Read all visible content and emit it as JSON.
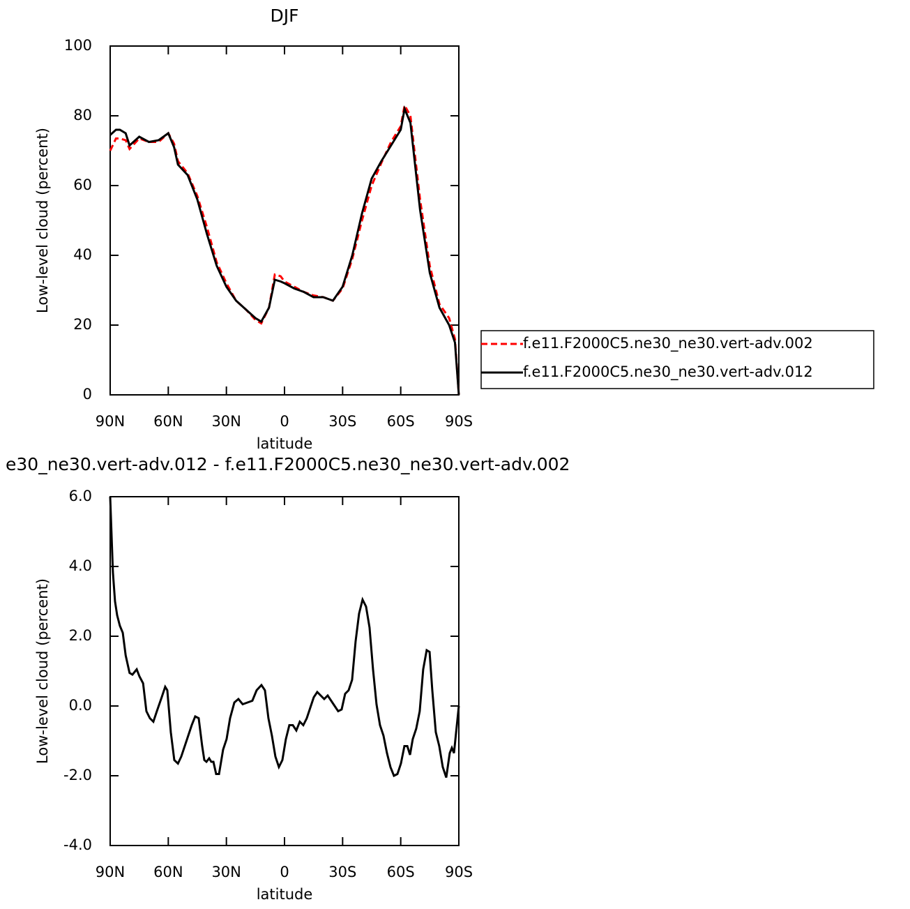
{
  "chart_data": [
    {
      "type": "line",
      "title": "DJF",
      "xlabel": "latitude",
      "ylabel": "Low-level cloud (percent)",
      "x": [
        90,
        87,
        85,
        82,
        80,
        75,
        70,
        65,
        60,
        57,
        55,
        50,
        45,
        40,
        35,
        30,
        25,
        20,
        15,
        12,
        8,
        5,
        2,
        0,
        -5,
        -10,
        -15,
        -20,
        -25,
        -30,
        -35,
        -40,
        -45,
        -50,
        -55,
        -60,
        -62,
        -65,
        -70,
        -75,
        -80,
        -85,
        -88,
        -90
      ],
      "series": [
        {
          "name": "f.e11.F2000C5.ne30_ne30.vert-adv.002",
          "color": "#ff0000",
          "style": "dashed",
          "values": [
            70,
            73.5,
            73.5,
            73,
            70.5,
            73.5,
            72.5,
            72.5,
            75,
            72,
            67,
            63.5,
            57,
            48,
            38,
            32,
            27,
            24.5,
            21.5,
            20.5,
            25,
            34.5,
            34,
            32.5,
            31,
            29.5,
            28.5,
            28,
            27,
            30.5,
            39,
            50,
            60,
            66.5,
            72.5,
            77,
            83,
            80,
            56,
            37,
            26,
            22,
            16,
            0
          ]
        },
        {
          "name": "f.e11.F2000C5.ne30_ne30.vert-adv.012",
          "color": "#000000",
          "style": "solid",
          "values": [
            74.5,
            76,
            76,
            75,
            71.5,
            74,
            72.5,
            73,
            75,
            71,
            66,
            63,
            56,
            46,
            37,
            31,
            27,
            24.5,
            22,
            21,
            25,
            33,
            32.5,
            32,
            30.5,
            29.5,
            28,
            28,
            27,
            31,
            40,
            52,
            62,
            67,
            71.5,
            76,
            82,
            78,
            53,
            35,
            25,
            20,
            15,
            0
          ]
        }
      ],
      "xlim": [
        90,
        -90
      ],
      "xticks": [
        {
          "value": 90,
          "label": "90N"
        },
        {
          "value": 60,
          "label": "60N"
        },
        {
          "value": 30,
          "label": "30N"
        },
        0,
        {
          "value": -30,
          "label": "30S"
        },
        {
          "value": -60,
          "label": "60S"
        },
        {
          "value": -90,
          "label": "90S"
        }
      ],
      "ylim": [
        0,
        100
      ],
      "yticks": [
        0,
        20,
        40,
        60,
        80,
        100
      ],
      "legend": "right"
    },
    {
      "type": "line",
      "title": "e30_ne30.vert-adv.012 - f.e11.F2000C5.ne30_ne30.vert-adv.002",
      "xlabel": "latitude",
      "ylabel": "Low-level cloud (percent)",
      "x": [
        90,
        88.6,
        87.5,
        86.4,
        85,
        83.5,
        82,
        80,
        78.5,
        76.3,
        74.9,
        73,
        71.3,
        69.5,
        67.7,
        65.9,
        63.4,
        61.6,
        60.5,
        58.7,
        56.9,
        55,
        53.3,
        51.5,
        49.7,
        47.9,
        46.1,
        44.3,
        42.5,
        41.4,
        40.3,
        38.9,
        37.8,
        36.7,
        35.3,
        33.8,
        31.7,
        29.9,
        28.1,
        25.9,
        23.8,
        21.6,
        19.1,
        16.6,
        14.4,
        11.9,
        10.1,
        8.3,
        6.5,
        4.7,
        2.9,
        1.1,
        -0.7,
        -2.5,
        -4.3,
        -6.1,
        -7.9,
        -9.7,
        -11.5,
        -13.3,
        -15.1,
        -16.9,
        -18.7,
        -20.5,
        -22.3,
        -24.1,
        -25.9,
        -27.7,
        -29.5,
        -31.3,
        -33.1,
        -34.9,
        -36.7,
        -38.5,
        -40.3,
        -42.1,
        -43.9,
        -45.7,
        -47.5,
        -49.3,
        -51.1,
        -52.9,
        -54.7,
        -56.5,
        -58.3,
        -60.1,
        -61.9,
        -63.4,
        -64.8,
        -66.2,
        -68,
        -69.8,
        -71.6,
        -73.4,
        -74.9,
        -76.3,
        -78.1,
        -79.9,
        -81.7,
        -83.5,
        -85.3,
        -86.4,
        -87.5,
        -88.6,
        -90
      ],
      "series": [
        {
          "color": "#000000",
          "style": "solid",
          "values": [
            6.0,
            3.84,
            3.0,
            2.6,
            2.3,
            2.1,
            1.45,
            0.95,
            0.9,
            1.05,
            0.85,
            0.65,
            -0.15,
            -0.35,
            -0.45,
            -0.15,
            0.25,
            0.55,
            0.45,
            -0.75,
            -1.55,
            -1.65,
            -1.45,
            -1.15,
            -0.85,
            -0.55,
            -0.3,
            -0.35,
            -1.15,
            -1.55,
            -1.6,
            -1.5,
            -1.6,
            -1.6,
            -1.95,
            -1.95,
            -1.25,
            -0.95,
            -0.35,
            0.1,
            0.2,
            0.05,
            0.1,
            0.15,
            0.45,
            0.6,
            0.45,
            -0.35,
            -0.85,
            -1.45,
            -1.75,
            -1.55,
            -0.95,
            -0.55,
            -0.55,
            -0.7,
            -0.45,
            -0.55,
            -0.35,
            -0.05,
            0.25,
            0.4,
            0.3,
            0.2,
            0.3,
            0.15,
            0,
            -0.15,
            -0.1,
            0.35,
            0.45,
            0.75,
            1.85,
            2.65,
            3.05,
            2.85,
            2.25,
            1.05,
            0.05,
            -0.55,
            -0.85,
            -1.35,
            -1.75,
            -2.0,
            -1.95,
            -1.65,
            -1.15,
            -1.15,
            -1.4,
            -0.95,
            -0.65,
            -0.15,
            1.05,
            1.6,
            1.55,
            0.45,
            -0.75,
            -1.15,
            -1.75,
            -2.05,
            -1.35,
            -1.2,
            -1.35,
            -0.75,
            0
          ]
        }
      ],
      "xlim": [
        90,
        -90
      ],
      "xticks": [
        {
          "value": 90,
          "label": "90N"
        },
        {
          "value": 60,
          "label": "60N"
        },
        {
          "value": 30,
          "label": "30N"
        },
        0,
        {
          "value": -30,
          "label": "30S"
        },
        {
          "value": -60,
          "label": "60S"
        },
        {
          "value": -90,
          "label": "90S"
        }
      ],
      "ylim": [
        -4,
        6
      ],
      "yticks": [
        {
          "value": -4,
          "label": "-4.0"
        },
        {
          "value": -2,
          "label": "-2.0"
        },
        {
          "value": 0,
          "label": "0.0"
        },
        {
          "value": 2,
          "label": "2.0"
        },
        {
          "value": 4,
          "label": "4.0"
        },
        {
          "value": 6,
          "label": "6.0"
        }
      ]
    }
  ]
}
